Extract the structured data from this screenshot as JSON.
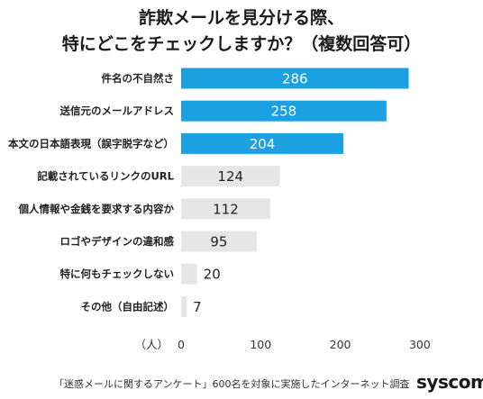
{
  "header": {
    "title_line1": "詐欺メールを見分ける際、",
    "title_line2": "特にどこをチェックしますか？（複数回答可）"
  },
  "footer": {
    "note": "「迷惑メールに関するアンケート」600名を対象に実施したインターネット調査",
    "brand": "syscom"
  },
  "colors": {
    "highlight": "#1ba1e2",
    "normal": "#e6e6e6"
  },
  "chart_data": {
    "type": "bar",
    "orientation": "horizontal",
    "categories": [
      "件名の不自然さ",
      "送信元のメールアドレス",
      "本文の日本語表現（誤字脱字など）",
      "記載されているリンクのURL",
      "個人情報や金銭を要求する内容か",
      "ロゴやデザインの違和感",
      "特に何もチェックしない",
      "その他（自由記述）"
    ],
    "values": [
      286,
      258,
      204,
      124,
      112,
      95,
      20,
      7
    ],
    "highlighted_top": 3,
    "x_unit": "（人）",
    "xlim": [
      0,
      300
    ],
    "xticks": [
      0,
      100,
      200,
      300
    ]
  }
}
